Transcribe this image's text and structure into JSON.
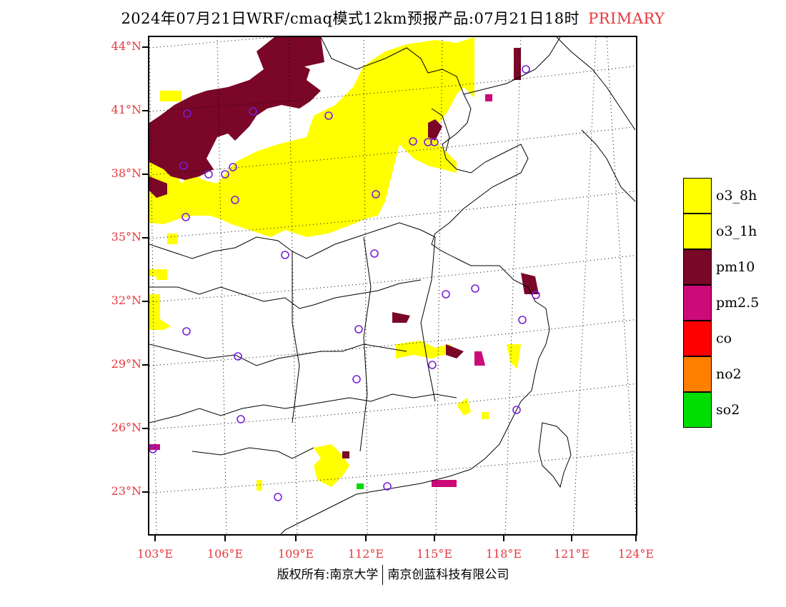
{
  "header": {
    "title": "2024年07月21日WRF/cmaq模式12km预报产品:07月21日18时",
    "label": "PRIMARY"
  },
  "map": {
    "lat_labels": [
      "44°N",
      "41°N",
      "38°N",
      "35°N",
      "32°N",
      "29°N",
      "26°N",
      "23°N"
    ],
    "lon_labels": [
      "103°E",
      "106°E",
      "109°E",
      "112°E",
      "115°E",
      "118°E",
      "121°E",
      "124°E"
    ],
    "colors": {
      "o3_8h": "#ffff00",
      "o3_1h": "#ffff00",
      "pm10": "#7a0628",
      "pm2_5": "#cc0a78",
      "co": "#ff0000",
      "no2": "#ff7f00",
      "so2": "#00dd00",
      "station": "#7a1fd8",
      "grid": "#000000",
      "boundary": "#000000"
    }
  },
  "legend": [
    {
      "label": "o3_8h",
      "color": "#ffff00"
    },
    {
      "label": "o3_1h",
      "color": "#ffff00"
    },
    {
      "label": "pm10",
      "color": "#7a0628"
    },
    {
      "label": "pm2.5",
      "color": "#cc0a78"
    },
    {
      "label": "co",
      "color": "#ff0000"
    },
    {
      "label": "no2",
      "color": "#ff7f00"
    },
    {
      "label": "so2",
      "color": "#00dd00"
    }
  ],
  "footer": {
    "copyright_left": "版权所有:南京大学",
    "copyright_right": "南京创蓝科技有限公司"
  }
}
